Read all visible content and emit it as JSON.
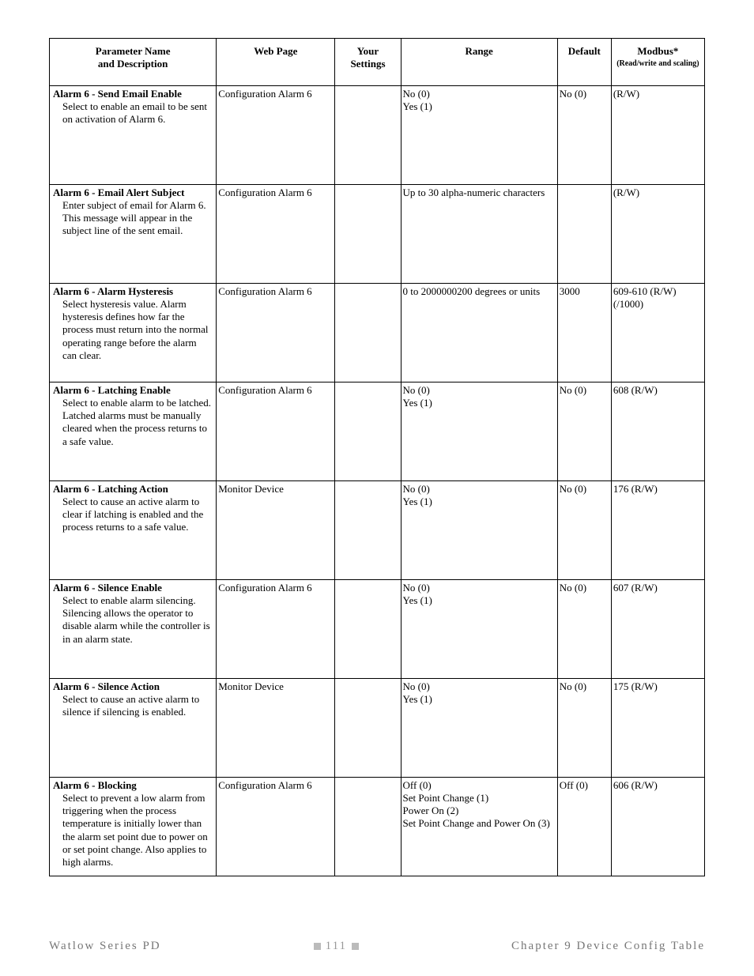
{
  "table": {
    "headers": {
      "param": "Parameter Name\nand Description",
      "web": "Web Page",
      "settings": "Your\nSettings",
      "range": "Range",
      "default": "Default",
      "modbus": "Modbus*",
      "modbus_sub": "(Read/write and scaling)"
    },
    "rows": [
      {
        "name": "Alarm 6 - Send Email Enable",
        "desc": "Select to enable an email to be sent on activation of Alarm 6.",
        "web": "Configuration Alarm 6",
        "range": "No (0)\nYes (1)",
        "default": "No (0)",
        "modbus": "(R/W)"
      },
      {
        "name": "Alarm 6 - Email Alert Subject",
        "desc": "Enter subject of email for Alarm 6. This message will appear in the subject line of the sent email.",
        "web": "Configuration Alarm 6",
        "range": "Up to 30 alpha-numeric characters",
        "default": "",
        "modbus": "(R/W)"
      },
      {
        "name": "Alarm 6 - Alarm Hysteresis",
        "desc": "Select hysteresis value. Alarm hysteresis defines how far the process must return into the normal operating range before the alarm can clear.",
        "web": "Configuration Alarm 6",
        "range": "0 to 2000000200 degrees or units",
        "default": "3000",
        "modbus": "609-610 (R/W)\n(/1000)"
      },
      {
        "name": "Alarm 6 - Latching Enable",
        "desc": "Select to enable alarm to be latched. Latched alarms must be manually cleared when the process returns to a safe value.",
        "web": "Configuration Alarm 6",
        "range": "No (0)\nYes (1)",
        "default": "No (0)",
        "modbus": "608 (R/W)"
      },
      {
        "name": "Alarm 6 - Latching Action",
        "desc": "Select to cause an active alarm to clear if latching is enabled and the process returns to a safe value.",
        "web": "Monitor Device",
        "range": "No (0)\nYes (1)",
        "default": "No (0)",
        "modbus": "176 (R/W)"
      },
      {
        "name": "Alarm 6 - Silence Enable",
        "desc": "Select to enable alarm silencing. Silencing allows the operator to disable alarm while the controller is in an alarm state.",
        "web": "Configuration Alarm 6",
        "range": "No (0)\nYes (1)",
        "default": "No (0)",
        "modbus": "607 (R/W)"
      },
      {
        "name": "Alarm 6 - Silence Action",
        "desc": "Select to cause an active alarm to silence if silencing is enabled.",
        "web": "Monitor Device",
        "range": "No (0)\nYes (1)",
        "default": "No (0)",
        "modbus": "175 (R/W)"
      },
      {
        "name": "Alarm 6 - Blocking",
        "desc": "Select to prevent a low alarm from triggering when the process temperature is initially lower than the alarm set point due to power on or set point change. Also applies to high alarms.",
        "web": "Configuration Alarm 6",
        "range": "Off (0)\nSet Point Change (1)\nPower On (2)\nSet Point Change and Power On (3)",
        "default": "Off (0)",
        "modbus": "606 (R/W)"
      }
    ]
  },
  "footer": {
    "left": "Watlow Series PD",
    "page": "111",
    "right": "Chapter 9 Device Config Table"
  }
}
